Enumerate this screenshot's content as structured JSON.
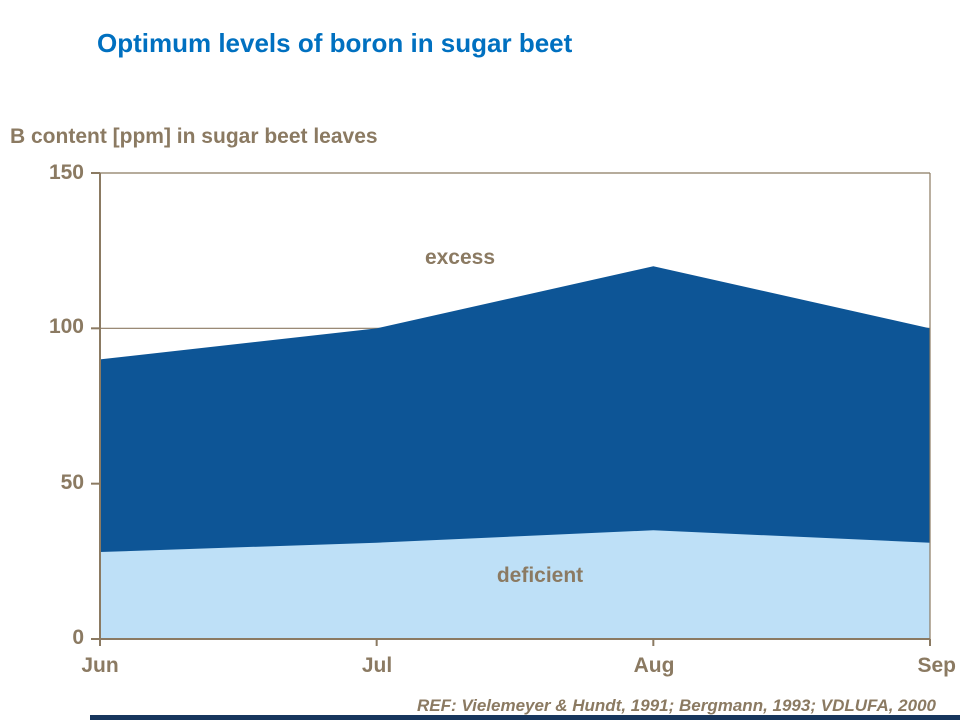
{
  "slide": {
    "title": "Optimum levels of boron in sugar beet",
    "reference": "REF: Vielemeyer & Hundt, 1991; Bergmann, 1993; VDLUFA, 2000"
  },
  "chart_data": {
    "type": "area",
    "axis_title": "B content [ppm] in sugar beet leaves",
    "categories": [
      "Jun",
      "Jul",
      "Aug",
      "Sep"
    ],
    "series": [
      {
        "name": "excess",
        "label": "excess",
        "role": "upper-boundary-of-optimum-range",
        "values": [
          90,
          100,
          120,
          100
        ],
        "color": "#0D5596"
      },
      {
        "name": "deficient",
        "label": "deficient",
        "role": "lower-boundary-of-optimum-range",
        "values": [
          28,
          31,
          35,
          31
        ],
        "color": "#BEE0F7"
      }
    ],
    "xlabel": "",
    "ylabel": "B content [ppm] in sugar beet leaves",
    "ylim": [
      0,
      150
    ],
    "yticks": [
      0,
      50,
      100,
      150
    ],
    "gridlines": [
      100,
      150
    ],
    "grid": "horizontal-partial",
    "legend_position": "inline-labels"
  },
  "colors": {
    "title_blue": "#0070C0",
    "text_brown": "#8B7A62",
    "axis_brown": "#8B7A62",
    "excess_fill": "#0D5596",
    "deficient_fill": "#BEE0F7",
    "footer_bar_navy": "#17365D",
    "background": "#FFFFFF"
  }
}
